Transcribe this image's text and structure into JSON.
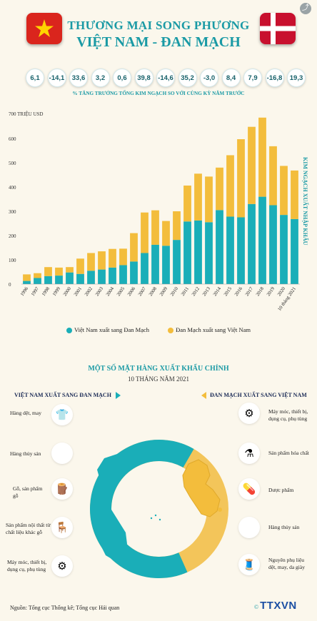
{
  "header": {
    "title_line1": "THƯƠNG MẠI SONG PHƯƠNG",
    "title_line2": "VIỆT NAM - ĐAN MẠCH"
  },
  "colors": {
    "teal": "#1aaeb8",
    "yellow": "#f3bd3c",
    "title": "#1a9aa5",
    "vn_red": "#da251d",
    "vn_star": "#ffd500",
    "dk_red": "#c8102e"
  },
  "icons": {
    "vn_flag": "vietnam-flag",
    "dk_flag": "denmark-flag",
    "share": "share-icon"
  },
  "growth": {
    "values": [
      "6,1",
      "-14,1",
      "33,6",
      "3,2",
      "0,6",
      "39,8",
      "-14,6",
      "35,2",
      "-3,0",
      "8,4",
      "7,9",
      "-16,8",
      "19,3"
    ],
    "caption": "% TĂNG TRƯỞNG TỔNG KIM NGẠCH SO VỚI CÙNG KỲ NĂM TRƯỚC"
  },
  "chart_data": {
    "type": "bar",
    "stacked": true,
    "unit_label": "700 TRIỆU USD",
    "side_label": "KIM NGẠCH XUẤT NHẬP KHẨU",
    "categories": [
      "1996",
      "1997",
      "1998",
      "1999",
      "2000",
      "2001",
      "2002",
      "2003",
      "2004",
      "2005",
      "2006",
      "2007",
      "2008",
      "2009",
      "2010",
      "2011",
      "2012",
      "2013",
      "2014",
      "2015",
      "2016",
      "2017",
      "2018",
      "2019",
      "2020",
      "10 tháng 2021"
    ],
    "yticks": [
      "0",
      "100",
      "200",
      "300",
      "400",
      "500",
      "600"
    ],
    "ylim": [
      0,
      700
    ],
    "series": [
      {
        "name": "Việt Nam xuất sang Đan Mạch",
        "color": "#1aaeb8",
        "values": [
          13,
          25,
          33,
          35,
          48,
          42,
          55,
          60,
          68,
          78,
          93,
          128,
          162,
          158,
          182,
          258,
          262,
          255,
          305,
          278,
          275,
          330,
          360,
          325,
          285,
          268
        ]
      },
      {
        "name": "Đan Mạch xuất sang Việt Nam",
        "color": "#f3bd3c",
        "values": [
          27,
          20,
          37,
          33,
          22,
          63,
          73,
          75,
          77,
          68,
          117,
          167,
          142,
          102,
          118,
          148,
          193,
          188,
          175,
          253,
          322,
          318,
          326,
          243,
          202,
          200
        ]
      }
    ],
    "legend_position": "bottom"
  },
  "exports": {
    "title": "MỘT SỐ MẶT HÀNG XUẤT KHẨU CHÍNH",
    "subtitle": "10 THÁNG NĂM 2021",
    "vn_header": "VIỆT NAM XUẤT SANG ĐAN MẠCH",
    "dk_header": "ĐAN MẠCH XUẤT SANG VIỆT NAM",
    "vn_items": [
      {
        "label": "Hàng dệt, may",
        "icon": "clothes-rack-icon"
      },
      {
        "label": "Hàng thủy sản",
        "icon": "seafood-icon"
      },
      {
        "label": "Gỗ, sản phẩm gỗ",
        "icon": "wood-icon"
      },
      {
        "label": "Sản phẩm nội thất từ chất liệu khác gỗ",
        "icon": "stool-icon"
      },
      {
        "label": "Máy móc, thiết bị, dụng cụ, phụ tùng",
        "icon": "gears-icon"
      }
    ],
    "dk_items": [
      {
        "label": "Máy móc, thiết bị, dụng cụ, phụ tùng",
        "icon": "gears-icon"
      },
      {
        "label": "Sản phẩm hóa chất",
        "icon": "chemicals-icon"
      },
      {
        "label": "Dược phẩm",
        "icon": "pills-icon"
      },
      {
        "label": "Hàng thủy sản",
        "icon": "seafood-icon"
      },
      {
        "label": "Nguyên phụ liệu dệt, may, da giày",
        "icon": "textile-icon"
      }
    ],
    "donut_shares": {
      "vn": 0.65,
      "dk": 0.35
    }
  },
  "footer": {
    "source": "Nguồn: Tổng cục Thống kê; Tổng cục Hải quan",
    "brand_symbol": "©",
    "brand": "TTXVN"
  }
}
